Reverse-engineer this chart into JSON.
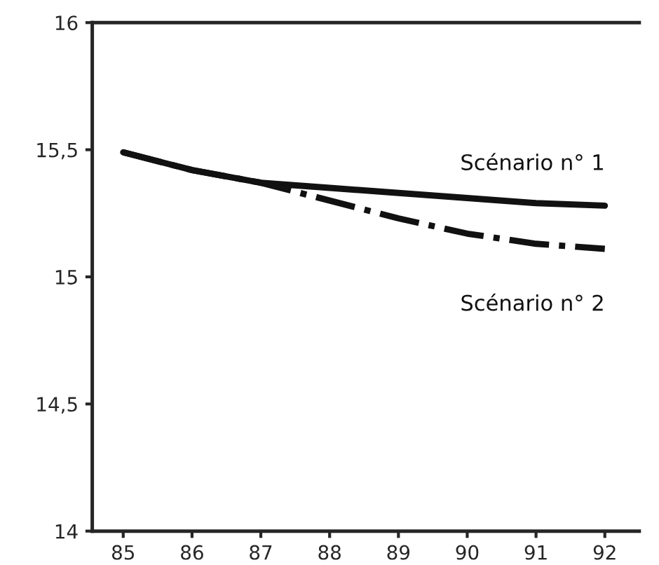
{
  "chart_data": {
    "type": "line",
    "categories": [
      "85",
      "86",
      "87",
      "88",
      "89",
      "90",
      "91",
      "92"
    ],
    "series": [
      {
        "name": "Scénario n° 1",
        "color": "#111111",
        "line_style": "solid",
        "values": [
          15.49,
          15.42,
          15.37,
          15.35,
          15.33,
          15.31,
          15.29,
          15.28
        ]
      },
      {
        "name": "Scénario n° 2",
        "color": "#111111",
        "line_style": "dashdot",
        "values": [
          15.49,
          15.42,
          15.37,
          15.3,
          15.23,
          15.17,
          15.13,
          15.11
        ]
      }
    ],
    "ylim": [
      14,
      16
    ],
    "yticks": [
      {
        "value": 14,
        "label": "14"
      },
      {
        "value": 14.5,
        "label": "14,5"
      },
      {
        "value": 15,
        "label": "15"
      },
      {
        "value": 15.5,
        "label": "15,5"
      },
      {
        "value": 16,
        "label": "16"
      }
    ],
    "grid": false,
    "legend": false,
    "marker": "none"
  }
}
